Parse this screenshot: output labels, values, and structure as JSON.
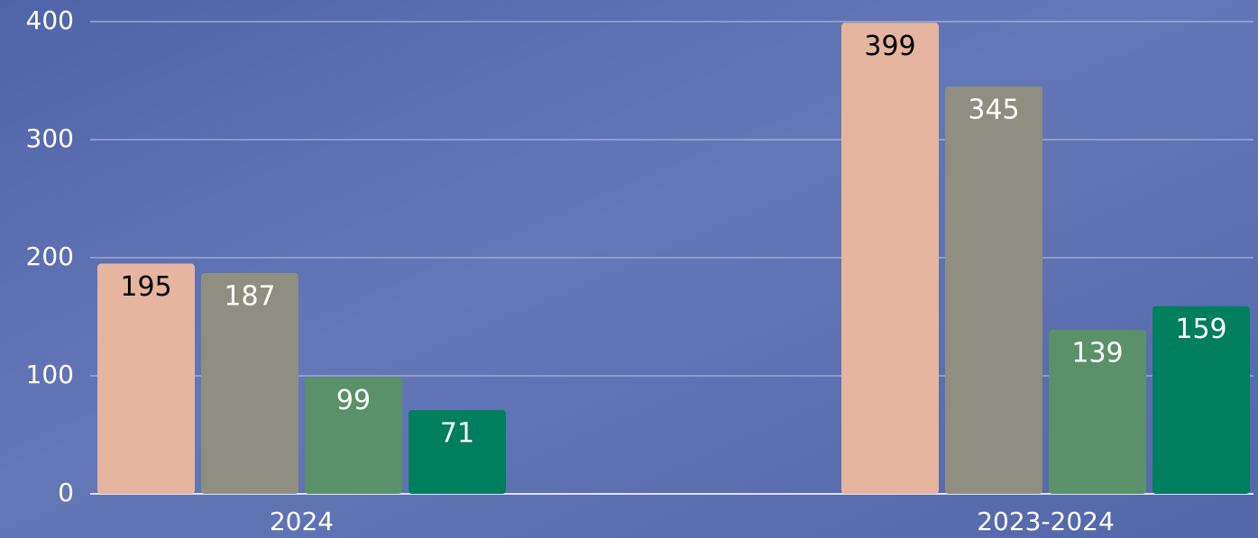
{
  "chart_data": {
    "type": "bar",
    "categories": [
      "2024",
      "2023-2024"
    ],
    "series": [
      {
        "color": "#e6b5a0",
        "label_color": "#000000",
        "values": [
          195,
          399
        ]
      },
      {
        "color": "#8f8e80",
        "label_color": "#ffffff",
        "values": [
          187,
          345
        ]
      },
      {
        "color": "#5b9169",
        "label_color": "#ffffff",
        "values": [
          99,
          139
        ]
      },
      {
        "color": "#007f5f",
        "label_color": "#ffffff",
        "values": [
          71,
          159
        ]
      }
    ],
    "ylim": [
      0,
      400
    ],
    "yticks": [
      0,
      100,
      200,
      300,
      400
    ],
    "grid": true
  }
}
